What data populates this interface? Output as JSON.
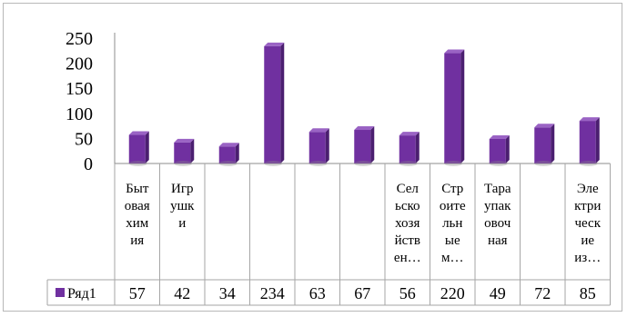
{
  "chart_data": {
    "type": "bar",
    "style": "3d-column",
    "bar_color": "#7030a0",
    "bar_color_dark": "#4b1f70",
    "bar_color_light": "#9a63c4",
    "categories": [
      "Бытовая химия",
      "Игрушки",
      "",
      "",
      "",
      "",
      "Сельскохозяйствен…",
      "Строительные м…",
      "Тараупаковочная",
      "",
      "Электрические из…"
    ],
    "category_lines": [
      [
        "Быт",
        "овая",
        "хим",
        "ия"
      ],
      [
        "Игр",
        "ушк",
        "и"
      ],
      [],
      [],
      [],
      [],
      [
        "Сел",
        "ьско",
        "хозя",
        "йств",
        "ен…"
      ],
      [
        "Стр",
        "оите",
        "льн",
        "ые",
        "м…"
      ],
      [
        "Тара",
        "упак",
        "овоч",
        "ная"
      ],
      [],
      [
        "Эле",
        "ктри",
        "ческ",
        "ие",
        "из…"
      ]
    ],
    "series": [
      {
        "name": "Ряд1",
        "values": [
          57,
          42,
          34,
          234,
          63,
          67,
          56,
          220,
          49,
          72,
          85
        ]
      }
    ],
    "yticks": [
      "0",
      "50",
      "100",
      "150",
      "200",
      "250"
    ],
    "ylim": [
      0,
      250
    ],
    "grid": false,
    "data_table": true,
    "legend_in_table": true
  }
}
